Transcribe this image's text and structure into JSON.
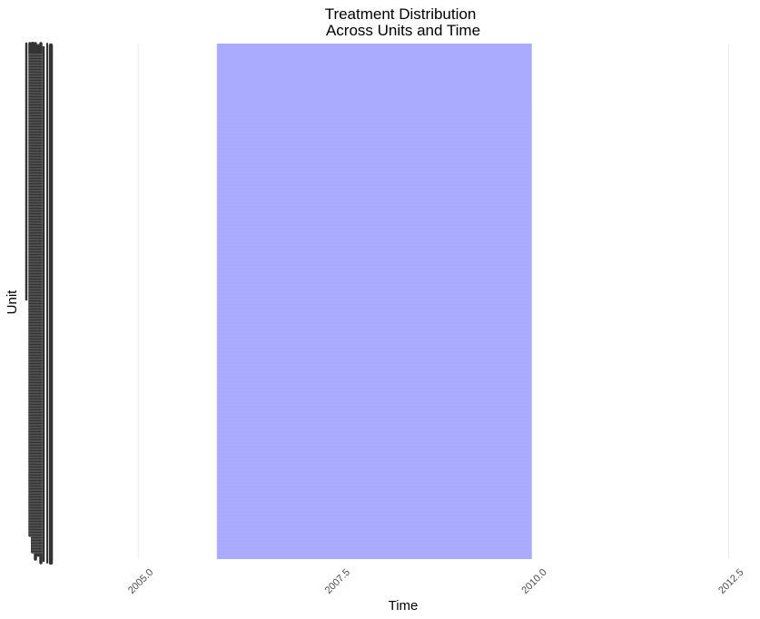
{
  "chart_data": {
    "type": "heatmap",
    "title_lines": [
      "Treatment Distribution",
      "Across Units and Time"
    ],
    "xlabel": "Time",
    "ylabel": "Unit",
    "xlim": [
      2003.96,
      2012.9
    ],
    "x_ticks": [
      2005.0,
      2007.5,
      2010.0,
      2012.5
    ],
    "x_tick_labels": [
      "2005.0",
      "2007.5",
      "2010.0",
      "2012.5"
    ],
    "treatment_start": 2006.0,
    "treatment_end": 2010.0,
    "treated_color": "#aaaaff",
    "grid": "vertical major only",
    "y_tick_labels": "overplotted, illegible"
  }
}
